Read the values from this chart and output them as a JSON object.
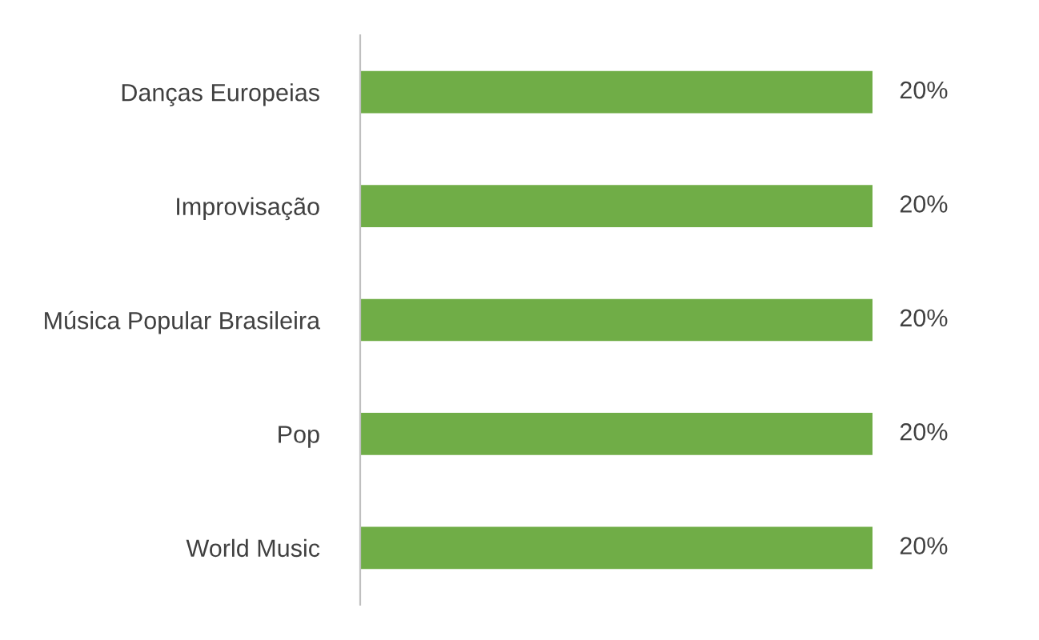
{
  "chart_data": {
    "type": "bar",
    "orientation": "horizontal",
    "categories": [
      "Danças Europeias",
      "Improvisação",
      "Música Popular Brasileira",
      "Pop",
      "World Music"
    ],
    "series": [
      {
        "color": "#70ad47",
        "values": [
          20,
          20,
          20,
          20,
          20
        ],
        "value_labels": [
          "20%",
          "20%",
          "20%",
          "20%",
          "20%"
        ]
      }
    ],
    "grid": false,
    "legend": false,
    "tick_labels": "y"
  }
}
